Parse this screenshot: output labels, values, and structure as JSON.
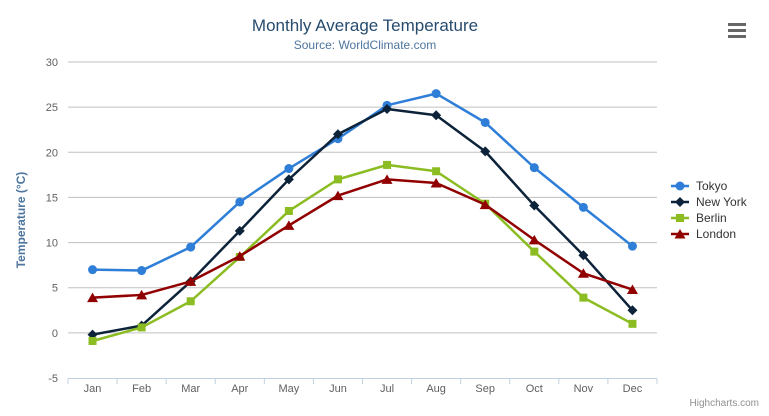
{
  "chart": {
    "title": "Monthly Average Temperature",
    "subtitle": "Source: WorldClimate.com",
    "credits": "Highcharts.com",
    "export_menu_icon": "hamburger-icon"
  },
  "chart_data": {
    "type": "line",
    "title": "Monthly Average Temperature",
    "subtitle": "Source: WorldClimate.com",
    "xlabel": "",
    "ylabel": "Temperature (°C)",
    "categories": [
      "Jan",
      "Feb",
      "Mar",
      "Apr",
      "May",
      "Jun",
      "Jul",
      "Aug",
      "Sep",
      "Oct",
      "Nov",
      "Dec"
    ],
    "series": [
      {
        "name": "Tokyo",
        "color": "#2f7ed8",
        "marker": "circle",
        "values": [
          7.0,
          6.9,
          9.5,
          14.5,
          18.2,
          21.5,
          25.2,
          26.5,
          23.3,
          18.3,
          13.9,
          9.6
        ]
      },
      {
        "name": "New York",
        "color": "#0d233a",
        "marker": "diamond",
        "values": [
          -0.2,
          0.8,
          5.7,
          11.3,
          17.0,
          22.0,
          24.8,
          24.1,
          20.1,
          14.1,
          8.6,
          2.5
        ]
      },
      {
        "name": "Berlin",
        "color": "#8bbc21",
        "marker": "square",
        "values": [
          -0.9,
          0.6,
          3.5,
          8.4,
          13.5,
          17.0,
          18.6,
          17.9,
          14.3,
          9.0,
          3.9,
          1.0
        ]
      },
      {
        "name": "London",
        "color": "#910000",
        "marker": "triangle",
        "values": [
          3.9,
          4.2,
          5.7,
          8.5,
          11.9,
          15.2,
          17.0,
          16.6,
          14.2,
          10.3,
          6.6,
          4.8
        ]
      }
    ],
    "ylim": [
      -5,
      30
    ],
    "y_tick_step": 5,
    "grid": true,
    "legend_position": "right"
  },
  "colors": {
    "title": "#274b6d",
    "subtitle": "#4d759e",
    "axis_title": "#4d759e",
    "axis_labels": "#606060",
    "gridline": "#c0c0c0",
    "axis_line": "#c0d0e0",
    "legend_text": "#333333",
    "credits": "#909090"
  }
}
